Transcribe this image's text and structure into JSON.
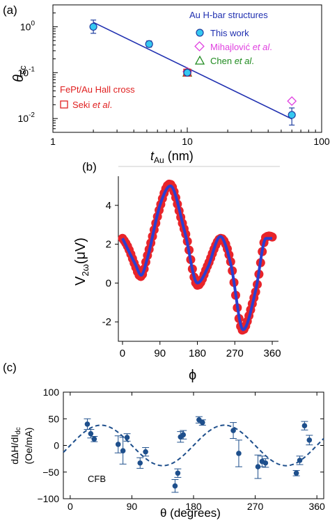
{
  "chart_data": [
    {
      "panel": "(a)",
      "type": "scatter",
      "xscale": "log",
      "yscale": "log",
      "xlim": [
        1,
        100
      ],
      "ylim": [
        0.005,
        3
      ],
      "xlabel_main": "t",
      "xlabel_sub": "Au",
      "xlabel_unit": " (nm)",
      "ylabel_main": "θ",
      "ylabel_sub": "sc",
      "xticks": [
        1,
        10,
        100
      ],
      "xtick_labels": [
        "1",
        "10",
        "100"
      ],
      "yticks": [
        0.01,
        0.1,
        1
      ],
      "ytick_labels": [
        {
          "base": "10",
          "exp": "-2"
        },
        {
          "base": "10",
          "exp": "-1"
        },
        {
          "base": "10",
          "exp": "0"
        }
      ],
      "legend_au_title": "Au H-bar structures",
      "legend_fept_title": "FePt/Au Hall cross",
      "series": [
        {
          "name": "This work",
          "name_suffix": "",
          "marker": "circle",
          "color": "#35c8f0",
          "edge": "#1f3fa0",
          "points": [
            {
              "x": 2.0,
              "y": 1.0,
              "ylo": 0.72,
              "yhi": 1.4
            },
            {
              "x": 5.2,
              "y": 0.42,
              "ylo": 0.36,
              "yhi": 0.49
            },
            {
              "x": 10.0,
              "y": 0.1,
              "ylo": 0.085,
              "yhi": 0.118
            },
            {
              "x": 60.0,
              "y": 0.012,
              "ylo": 0.0072,
              "yhi": 0.017
            }
          ]
        },
        {
          "name": "Mihajlović ",
          "name_suffix": "et al",
          "name_end": ".",
          "marker": "diamond",
          "color": "#e040e0",
          "points": [
            {
              "x": 10.0,
              "y": 0.105
            },
            {
              "x": 60.0,
              "y": 0.024
            }
          ]
        },
        {
          "name": "Chen ",
          "name_suffix": "et al",
          "name_end": ".",
          "marker": "triangle",
          "color": "#1e8a1e",
          "points": [
            {
              "x": 10.0,
              "y": 0.1
            }
          ]
        },
        {
          "name": "Seki ",
          "name_suffix": "et al",
          "name_end": ".",
          "marker": "square",
          "color": "#e02020",
          "points": [
            {
              "x": 10.0,
              "y": 0.1
            }
          ]
        }
      ],
      "fit_line": {
        "x": [
          2.0,
          60.0
        ],
        "y": [
          1.25,
          0.0098
        ],
        "color": "#1f2fb0"
      }
    },
    {
      "panel": "(b)",
      "type": "line",
      "xlim": [
        -10,
        375
      ],
      "ylim": [
        -3,
        5.5
      ],
      "xlabel": "ϕ",
      "ylabel_main": "V",
      "ylabel_sub": "2ω",
      "ylabel_unit": "(μV)",
      "xticks": [
        0,
        90,
        180,
        270,
        360
      ],
      "xtick_labels": [
        "0",
        "90",
        "180",
        "270",
        "360"
      ],
      "yticks": [
        -2,
        0,
        2,
        4
      ],
      "ytick_labels": [
        "-2",
        "0",
        "2",
        "4"
      ],
      "series": [
        {
          "name": "",
          "role": "data",
          "color": "#e8242a"
        },
        {
          "name": "",
          "role": "fit",
          "color": "#2b3fd0"
        }
      ],
      "curve": {
        "x": [
          0,
          30,
          45,
          60,
          90,
          115,
          150,
          180,
          205,
          235,
          260,
          290,
          320,
          345,
          360
        ],
        "y": [
          2.3,
          1.0,
          0.4,
          1.3,
          4.0,
          5.0,
          2.6,
          0.0,
          0.8,
          2.4,
          1.0,
          -2.4,
          -0.4,
          2.3,
          2.3
        ]
      }
    },
    {
      "panel": "(c)",
      "type": "scatter",
      "xlim": [
        -10,
        370
      ],
      "ylim": [
        -100,
        100
      ],
      "xlabel": "θ (degrees)",
      "ylabel_line1": "dΔH/dI",
      "ylabel_sub": "dc",
      "ylabel_line2": "(Oe/mA)",
      "annotation": "CFB",
      "xticks": [
        0,
        90,
        180,
        270,
        360
      ],
      "xtick_labels": [
        "0",
        "90",
        "180",
        "270",
        "360"
      ],
      "yticks": [
        -100,
        -50,
        0,
        50,
        100
      ],
      "ytick_labels": [
        "−100",
        "−50",
        "0",
        "50",
        "100"
      ],
      "series": [
        {
          "name": "",
          "color": "#1e4f8c",
          "points": [
            {
              "x": 25,
              "y": 40,
              "err": 10
            },
            {
              "x": 30,
              "y": 22,
              "err": 8
            },
            {
              "x": 35,
              "y": 12,
              "err": 5
            },
            {
              "x": 70,
              "y": 2,
              "err": 16
            },
            {
              "x": 77,
              "y": -10,
              "err": 25
            },
            {
              "x": 83,
              "y": 15,
              "err": 7
            },
            {
              "x": 102,
              "y": -33,
              "err": 10
            },
            {
              "x": 110,
              "y": -12,
              "err": 8
            },
            {
              "x": 153,
              "y": -76,
              "err": 12
            },
            {
              "x": 157,
              "y": -52,
              "err": 8
            },
            {
              "x": 161,
              "y": 16,
              "err": 10
            },
            {
              "x": 165,
              "y": 20,
              "err": 8
            },
            {
              "x": 188,
              "y": 48,
              "err": 6
            },
            {
              "x": 193,
              "y": 43,
              "err": 5
            },
            {
              "x": 238,
              "y": 28,
              "err": 15
            },
            {
              "x": 246,
              "y": -15,
              "err": 25
            },
            {
              "x": 274,
              "y": -40,
              "err": 22
            },
            {
              "x": 280,
              "y": -30,
              "err": 10
            },
            {
              "x": 285,
              "y": -33,
              "err": 8
            },
            {
              "x": 330,
              "y": -52,
              "err": 5
            },
            {
              "x": 335,
              "y": -28,
              "err": 8
            },
            {
              "x": 342,
              "y": 37,
              "err": 8
            },
            {
              "x": 349,
              "y": 10,
              "err": 9
            }
          ]
        }
      ],
      "fit_curve": {
        "amplitude": 38,
        "phase_deg": 15,
        "color": "#1e4f8c"
      }
    }
  ]
}
